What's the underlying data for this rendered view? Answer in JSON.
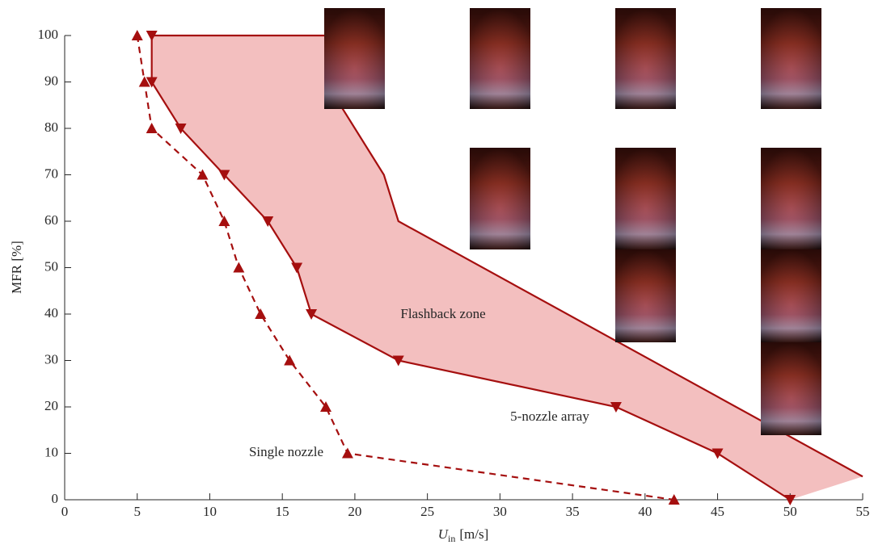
{
  "chart_data": {
    "type": "line",
    "x_label": {
      "symbol": "U",
      "subscript": "in",
      "unit": "[m/s]"
    },
    "y_label": "MFR [%]",
    "xlim": [
      0,
      55
    ],
    "xticks": [
      0,
      5,
      10,
      15,
      20,
      25,
      30,
      35,
      40,
      45,
      50,
      55
    ],
    "ylim": [
      0,
      100
    ],
    "yticks": [
      0,
      10,
      20,
      30,
      40,
      50,
      60,
      70,
      80,
      90,
      100
    ],
    "series": [
      {
        "color": "#a50f0f",
        "dash": false,
        "marker": "down",
        "x": [
          6,
          6,
          8,
          11,
          14,
          16,
          17,
          23,
          38,
          45,
          50
        ],
        "values": [
          100,
          90,
          80,
          70,
          60,
          50,
          40,
          30,
          20,
          10,
          0
        ]
      },
      {
        "color": "#a50f0f",
        "dash": true,
        "marker": "up",
        "x": [
          5,
          5.5,
          6,
          9.5,
          11,
          12,
          13.5,
          15.5,
          18,
          19.5,
          42
        ],
        "values": [
          100,
          90,
          80,
          70,
          60,
          50,
          40,
          30,
          20,
          10,
          0
        ]
      },
      {
        "color": "#a50f0f",
        "dash": false,
        "marker": "none",
        "x": [
          6,
          18,
          19,
          22,
          23,
          55
        ],
        "values": [
          100,
          100,
          85,
          70,
          60,
          5
        ]
      }
    ],
    "fill": {
      "color": "#f3bfbf",
      "between": [
        0,
        2
      ]
    },
    "annotations": [
      "Flashback zone",
      "5-nozzle array",
      "Single nozzle"
    ]
  }
}
